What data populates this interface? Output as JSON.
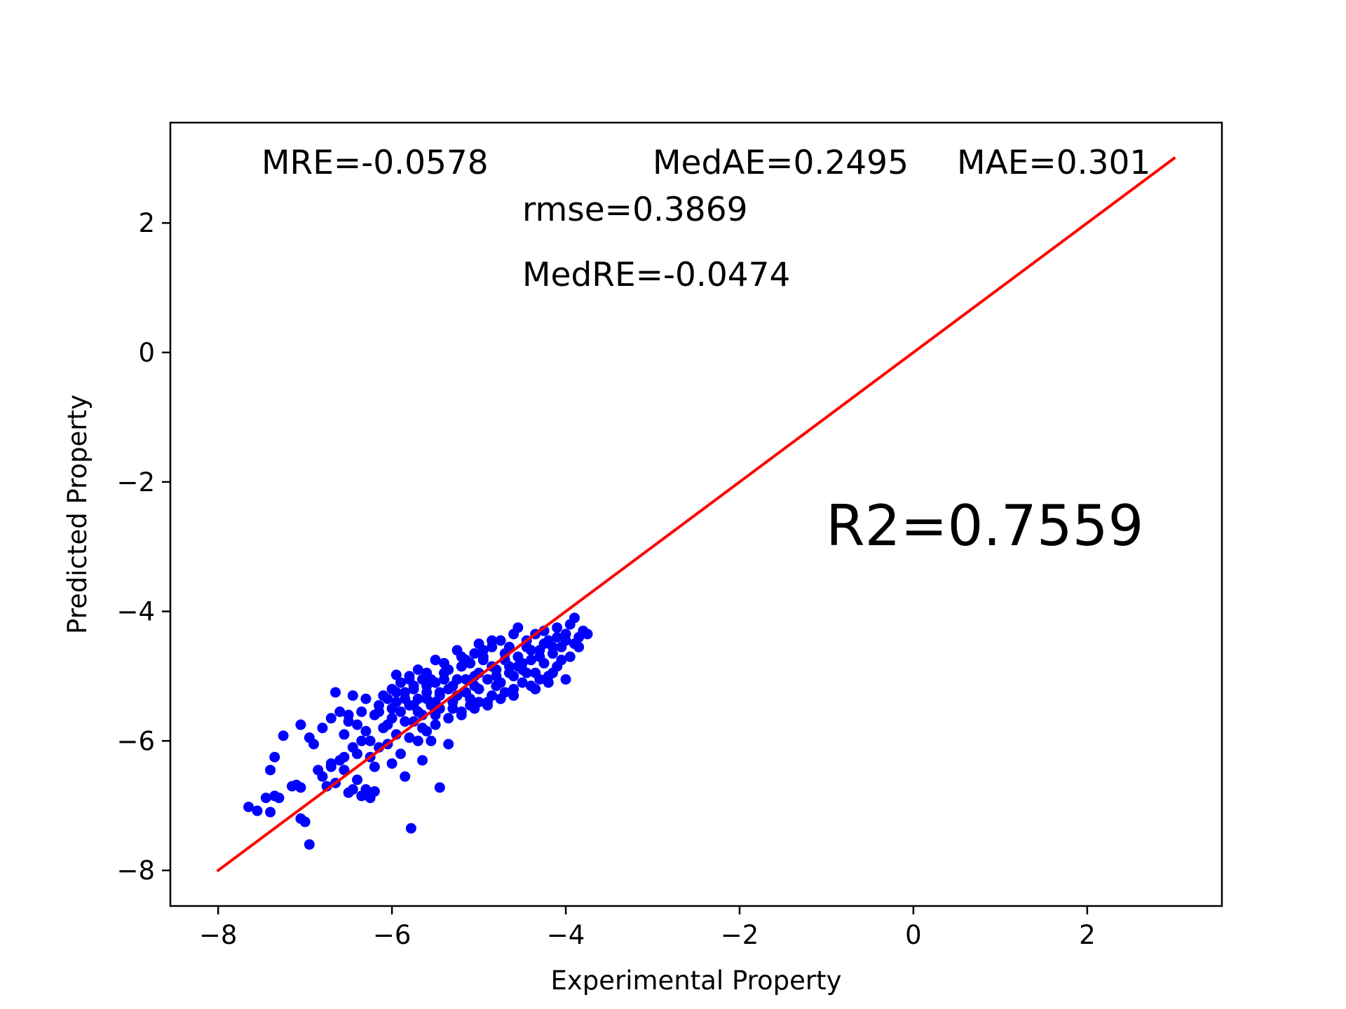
{
  "chart_data": {
    "type": "scatter",
    "xlabel": "Experimental Property",
    "ylabel": "Predicted Property",
    "xlim": [
      -8.55,
      3.55
    ],
    "ylim": [
      -8.55,
      3.55
    ],
    "x_ticks": [
      -8,
      -6,
      -4,
      -2,
      0,
      2
    ],
    "y_ticks": [
      -8,
      -6,
      -4,
      -2,
      0,
      2
    ],
    "x_tick_labels": [
      "−8",
      "−6",
      "−4",
      "−2",
      "0",
      "2"
    ],
    "y_tick_labels": [
      "−8",
      "−6",
      "−4",
      "−2",
      "0",
      "2"
    ],
    "grid": false,
    "legend": "none",
    "point_color": "#0000ff",
    "line_color": "#ff0000",
    "reference_line": {
      "x": [
        -8,
        3
      ],
      "y": [
        -8,
        3
      ]
    },
    "annotations": {
      "mre": "MRE=-0.0578",
      "medae": "MedAE=0.2495",
      "mae": "MAE=0.301",
      "rmse": "rmse=0.3869",
      "medre": "MedRE=-0.0474",
      "r2": "R2=0.7559"
    },
    "points": [
      [
        -7.65,
        -7.02
      ],
      [
        -7.55,
        -7.08
      ],
      [
        -7.45,
        -6.88
      ],
      [
        -7.4,
        -7.1
      ],
      [
        -7.35,
        -6.85
      ],
      [
        -7.3,
        -6.88
      ],
      [
        -7.15,
        -6.7
      ],
      [
        -7.1,
        -6.68
      ],
      [
        -7.05,
        -6.72
      ],
      [
        -7.05,
        -7.2
      ],
      [
        -7.0,
        -7.25
      ],
      [
        -6.95,
        -7.6
      ],
      [
        -7.4,
        -6.45
      ],
      [
        -7.35,
        -6.25
      ],
      [
        -7.25,
        -5.92
      ],
      [
        -7.05,
        -5.75
      ],
      [
        -6.95,
        -5.95
      ],
      [
        -6.9,
        -6.05
      ],
      [
        -6.85,
        -6.45
      ],
      [
        -6.8,
        -6.55
      ],
      [
        -6.75,
        -6.7
      ],
      [
        -6.7,
        -6.4
      ],
      [
        -6.65,
        -6.65
      ],
      [
        -6.6,
        -6.3
      ],
      [
        -6.55,
        -6.45
      ],
      [
        -6.5,
        -6.8
      ],
      [
        -6.45,
        -6.75
      ],
      [
        -6.4,
        -6.6
      ],
      [
        -6.35,
        -6.85
      ],
      [
        -6.3,
        -6.75
      ],
      [
        -6.25,
        -6.88
      ],
      [
        -6.2,
        -6.78
      ],
      [
        -6.8,
        -5.8
      ],
      [
        -6.7,
        -5.65
      ],
      [
        -6.6,
        -5.55
      ],
      [
        -6.55,
        -5.9
      ],
      [
        -6.5,
        -5.6
      ],
      [
        -6.45,
        -6.1
      ],
      [
        -6.4,
        -5.75
      ],
      [
        -6.35,
        -6.0
      ],
      [
        -6.3,
        -5.85
      ],
      [
        -6.25,
        -6.25
      ],
      [
        -6.2,
        -6.4
      ],
      [
        -6.15,
        -5.55
      ],
      [
        -6.1,
        -5.8
      ],
      [
        -6.05,
        -6.05
      ],
      [
        -6.0,
        -5.65
      ],
      [
        -5.95,
        -5.9
      ],
      [
        -5.9,
        -6.2
      ],
      [
        -5.85,
        -6.55
      ],
      [
        -5.8,
        -5.45
      ],
      [
        -5.75,
        -5.7
      ],
      [
        -5.7,
        -6.0
      ],
      [
        -5.65,
        -6.3
      ],
      [
        -5.6,
        -5.85
      ],
      [
        -5.55,
        -6.0
      ],
      [
        -5.5,
        -5.6
      ],
      [
        -5.45,
        -6.72
      ],
      [
        -5.78,
        -7.35
      ],
      [
        -5.35,
        -6.05
      ],
      [
        -6.65,
        -5.25
      ],
      [
        -6.45,
        -5.3
      ],
      [
        -6.3,
        -5.35
      ],
      [
        -6.1,
        -5.3
      ],
      [
        -6.0,
        -5.2
      ],
      [
        -5.95,
        -5.4
      ],
      [
        -5.9,
        -5.1
      ],
      [
        -5.85,
        -5.25
      ],
      [
        -5.8,
        -5.0
      ],
      [
        -5.75,
        -5.2
      ],
      [
        -5.7,
        -5.35
      ],
      [
        -5.65,
        -5.05
      ],
      [
        -5.6,
        -5.25
      ],
      [
        -5.55,
        -5.45
      ],
      [
        -5.5,
        -5.1
      ],
      [
        -5.45,
        -5.3
      ],
      [
        -5.4,
        -4.95
      ],
      [
        -5.35,
        -5.2
      ],
      [
        -5.3,
        -5.4
      ],
      [
        -5.25,
        -5.05
      ],
      [
        -5.2,
        -4.85
      ],
      [
        -5.15,
        -5.25
      ],
      [
        -5.1,
        -5.45
      ],
      [
        -5.05,
        -5.0
      ],
      [
        -5.0,
        -5.2
      ],
      [
        -4.95,
        -4.75
      ],
      [
        -4.9,
        -5.05
      ],
      [
        -4.85,
        -5.3
      ],
      [
        -4.8,
        -4.9
      ],
      [
        -4.75,
        -5.1
      ],
      [
        -4.7,
        -4.65
      ],
      [
        -4.65,
        -4.85
      ],
      [
        -4.6,
        -5.0
      ],
      [
        -4.55,
        -4.7
      ],
      [
        -4.5,
        -4.9
      ],
      [
        -4.45,
        -4.55
      ],
      [
        -4.4,
        -4.75
      ],
      [
        -4.35,
        -4.95
      ],
      [
        -4.3,
        -4.6
      ],
      [
        -4.25,
        -4.8
      ],
      [
        -4.2,
        -4.45
      ],
      [
        -4.15,
        -4.65
      ],
      [
        -4.1,
        -4.85
      ],
      [
        -4.05,
        -4.55
      ],
      [
        -4.0,
        -4.35
      ],
      [
        -3.95,
        -4.7
      ],
      [
        -3.9,
        -4.5
      ],
      [
        -3.85,
        -4.4
      ],
      [
        -3.8,
        -4.3
      ],
      [
        -3.75,
        -4.35
      ],
      [
        -3.95,
        -4.2
      ],
      [
        -3.9,
        -4.1
      ],
      [
        -4.15,
        -4.95
      ],
      [
        -4.0,
        -5.05
      ],
      [
        -4.3,
        -5.05
      ],
      [
        -4.5,
        -5.1
      ],
      [
        -4.7,
        -5.25
      ],
      [
        -4.9,
        -5.4
      ],
      [
        -5.1,
        -5.35
      ],
      [
        -5.3,
        -5.5
      ],
      [
        -4.55,
        -4.25
      ],
      [
        -4.6,
        -4.35
      ],
      [
        -4.85,
        -4.55
      ],
      [
        -5.05,
        -4.65
      ],
      [
        -5.2,
        -4.7
      ],
      [
        -5.4,
        -4.8
      ],
      [
        -5.6,
        -4.95
      ],
      [
        -5.8,
        -5.05
      ],
      [
        -6.0,
        -5.5
      ],
      [
        -6.2,
        -5.6
      ],
      [
        -5.95,
        -4.98
      ],
      [
        -5.7,
        -4.9
      ],
      [
        -5.5,
        -4.75
      ],
      [
        -5.25,
        -4.6
      ],
      [
        -5.0,
        -4.5
      ],
      [
        -4.75,
        -4.45
      ],
      [
        -4.65,
        -4.55
      ],
      [
        -4.45,
        -4.45
      ],
      [
        -4.35,
        -4.35
      ],
      [
        -4.25,
        -4.3
      ],
      [
        -4.1,
        -4.25
      ],
      [
        -4.05,
        -4.75
      ],
      [
        -4.2,
        -5.0
      ],
      [
        -4.4,
        -5.15
      ],
      [
        -4.6,
        -5.2
      ],
      [
        -4.8,
        -5.15
      ],
      [
        -5.0,
        -5.4
      ],
      [
        -5.2,
        -5.55
      ],
      [
        -5.45,
        -5.5
      ],
      [
        -5.65,
        -5.6
      ],
      [
        -5.85,
        -5.7
      ],
      [
        -6.05,
        -5.75
      ],
      [
        -6.25,
        -6.0
      ],
      [
        -6.4,
        -6.2
      ],
      [
        -6.55,
        -6.25
      ],
      [
        -6.7,
        -6.35
      ],
      [
        -5.9,
        -5.55
      ],
      [
        -5.75,
        -5.45
      ],
      [
        -5.6,
        -5.35
      ],
      [
        -5.45,
        -5.25
      ],
      [
        -5.3,
        -5.15
      ],
      [
        -5.15,
        -5.05
      ],
      [
        -5.0,
        -4.95
      ],
      [
        -4.85,
        -4.85
      ],
      [
        -4.7,
        -4.75
      ],
      [
        -4.55,
        -4.85
      ],
      [
        -4.45,
        -4.95
      ],
      [
        -4.95,
        -4.7
      ],
      [
        -5.1,
        -4.8
      ],
      [
        -5.35,
        -4.9
      ],
      [
        -5.55,
        -5.05
      ],
      [
        -5.75,
        -5.15
      ],
      [
        -5.95,
        -5.25
      ],
      [
        -6.15,
        -5.45
      ],
      [
        -6.35,
        -5.55
      ],
      [
        -6.5,
        -5.7
      ],
      [
        -6.0,
        -6.35
      ],
      [
        -6.15,
        -6.1
      ],
      [
        -5.8,
        -5.95
      ],
      [
        -5.65,
        -5.8
      ],
      [
        -5.5,
        -5.75
      ],
      [
        -5.35,
        -5.65
      ],
      [
        -5.2,
        -5.6
      ],
      [
        -5.05,
        -5.5
      ],
      [
        -4.9,
        -5.45
      ],
      [
        -4.75,
        -5.35
      ],
      [
        -4.6,
        -5.3
      ],
      [
        -4.35,
        -5.2
      ],
      [
        -4.2,
        -5.1
      ],
      [
        -4.85,
        -4.45
      ],
      [
        -4.95,
        -4.6
      ],
      [
        -5.15,
        -4.75
      ],
      [
        -5.4,
        -5.05
      ],
      [
        -5.6,
        -5.15
      ],
      [
        -5.85,
        -5.35
      ],
      [
        -6.05,
        -5.35
      ],
      [
        -5.7,
        -5.55
      ],
      [
        -5.5,
        -5.4
      ],
      [
        -5.25,
        -5.3
      ],
      [
        -5.05,
        -5.15
      ],
      [
        -4.8,
        -5.0
      ],
      [
        -4.65,
        -4.95
      ],
      [
        -4.5,
        -4.8
      ],
      [
        -4.3,
        -4.7
      ],
      [
        -4.15,
        -4.55
      ],
      [
        -4.0,
        -4.45
      ],
      [
        -3.85,
        -4.55
      ],
      [
        -4.1,
        -4.4
      ],
      [
        -4.25,
        -4.5
      ],
      [
        -4.4,
        -4.6
      ]
    ]
  }
}
